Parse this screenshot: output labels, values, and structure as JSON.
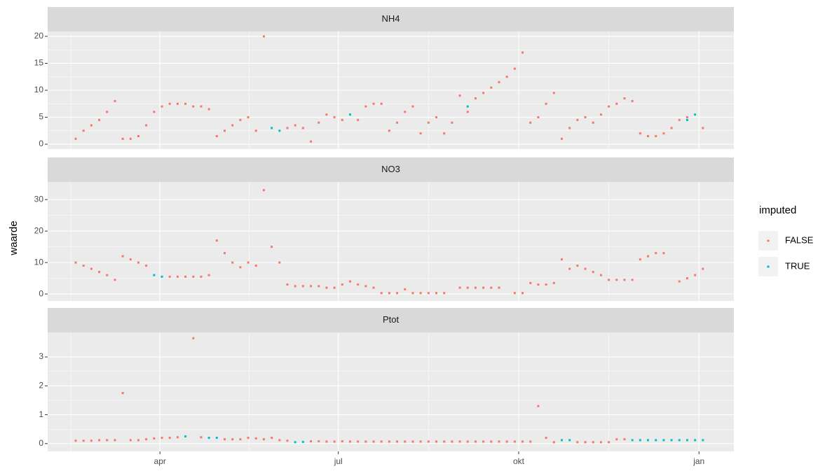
{
  "y_label": "waarde",
  "legend_title": "imputed",
  "chart_data": [
    {
      "type": "scatter",
      "title": "NH4",
      "x": [
        48,
        52,
        56,
        60,
        64,
        68,
        72,
        76,
        80,
        84,
        88,
        92,
        96,
        100,
        104,
        108,
        112,
        116,
        120,
        124,
        128,
        132,
        136,
        140,
        144,
        148,
        152,
        156,
        160,
        164,
        168,
        172,
        176,
        180,
        184,
        188,
        192,
        196,
        200,
        204,
        208,
        212,
        216,
        220,
        224,
        228,
        232,
        236,
        240,
        244,
        248,
        252,
        256,
        260,
        264,
        268,
        272,
        276,
        280,
        284,
        288,
        292,
        296,
        300,
        304,
        308,
        312,
        316,
        320,
        324,
        328,
        332,
        336,
        340,
        344,
        348,
        352,
        356,
        360,
        364,
        368
      ],
      "series": [
        {
          "name": "FALSE",
          "color": "#F8766D",
          "values": [
            1,
            2.5,
            3.5,
            4.5,
            6,
            8,
            1,
            1,
            1.5,
            3.5,
            6,
            7,
            7.5,
            7.5,
            7.5,
            7,
            7,
            6.5,
            1.5,
            2.5,
            3.5,
            4.5,
            5,
            2.5,
            20,
            null,
            null,
            3,
            3.5,
            3,
            0.5,
            4,
            5.5,
            5,
            4.5,
            null,
            4.5,
            7,
            7.5,
            7.5,
            2.5,
            4,
            6,
            7,
            2,
            4,
            5,
            2,
            4,
            9,
            6,
            8.5,
            9.5,
            10.5,
            11.5,
            12.5,
            14,
            17,
            4,
            5,
            7.5,
            9.5,
            1,
            3,
            4.5,
            5,
            4,
            5.5,
            7,
            7.5,
            8.5,
            8,
            2,
            1.5,
            1.5,
            2,
            3,
            4.5,
            5,
            null,
            3
          ]
        },
        {
          "name": "TRUE",
          "color": "#00BFC4",
          "values": [
            null,
            null,
            null,
            null,
            null,
            null,
            null,
            null,
            null,
            null,
            null,
            null,
            null,
            null,
            null,
            null,
            null,
            null,
            null,
            null,
            null,
            null,
            null,
            null,
            null,
            3,
            2.5,
            null,
            null,
            null,
            null,
            null,
            null,
            null,
            null,
            5.5,
            null,
            null,
            null,
            null,
            null,
            null,
            null,
            null,
            null,
            null,
            null,
            null,
            null,
            null,
            7,
            null,
            null,
            null,
            null,
            null,
            null,
            null,
            null,
            null,
            null,
            null,
            null,
            null,
            null,
            null,
            null,
            null,
            null,
            null,
            null,
            null,
            null,
            null,
            null,
            null,
            null,
            null,
            4.5,
            5.5,
            null
          ]
        }
      ],
      "xlim": [
        33.7,
        383.8
      ],
      "xticks": [
        {
          "value": 91,
          "label": "apr"
        },
        {
          "value": 182,
          "label": "jul"
        },
        {
          "value": 274,
          "label": "okt"
        },
        {
          "value": 366,
          "label": "jan"
        }
      ],
      "ylim": [
        -0.9,
        20.9
      ],
      "yticks": [
        0,
        5,
        10,
        15,
        20
      ],
      "grid": true
    },
    {
      "type": "scatter",
      "title": "NO3",
      "x": [
        48,
        52,
        56,
        60,
        64,
        68,
        72,
        76,
        80,
        84,
        88,
        92,
        96,
        100,
        104,
        108,
        112,
        116,
        120,
        124,
        128,
        132,
        136,
        140,
        144,
        148,
        152,
        156,
        160,
        164,
        168,
        172,
        176,
        180,
        184,
        188,
        192,
        196,
        200,
        204,
        208,
        212,
        216,
        220,
        224,
        228,
        232,
        236,
        240,
        244,
        248,
        252,
        256,
        260,
        264,
        268,
        272,
        276,
        280,
        284,
        288,
        292,
        296,
        300,
        304,
        308,
        312,
        316,
        320,
        324,
        328,
        332,
        336,
        340,
        344,
        348,
        352,
        356,
        360,
        364,
        368
      ],
      "series": [
        {
          "name": "FALSE",
          "color": "#F8766D",
          "values": [
            10,
            9,
            8,
            7,
            6,
            4.5,
            12,
            11,
            10,
            9,
            null,
            null,
            5.5,
            5.5,
            5.5,
            5.5,
            5.5,
            6,
            17,
            13,
            10,
            8.5,
            10,
            9,
            33,
            15,
            10,
            3,
            2.5,
            2.5,
            2.5,
            2.5,
            2,
            2,
            3,
            4,
            3,
            2.5,
            2,
            0.3,
            0.3,
            0.3,
            1.5,
            0.3,
            0.3,
            0.3,
            0.3,
            0.3,
            null,
            2,
            2,
            2,
            2,
            2,
            2,
            null,
            0.3,
            0.3,
            3.5,
            3,
            3,
            3.5,
            11,
            8,
            9,
            8,
            7,
            6,
            4.5,
            4.5,
            4.5,
            4.5,
            11,
            12,
            13,
            13,
            null,
            4,
            5,
            6,
            8
          ]
        },
        {
          "name": "TRUE",
          "color": "#00BFC4",
          "values": [
            null,
            null,
            null,
            null,
            null,
            null,
            null,
            null,
            null,
            null,
            6,
            5.5,
            null,
            null,
            null,
            null,
            null,
            null,
            null,
            null,
            null,
            null,
            null,
            null,
            null,
            null,
            null,
            null,
            null,
            null,
            null,
            null,
            null,
            null,
            null,
            null,
            null,
            null,
            null,
            null,
            null,
            null,
            null,
            null,
            null,
            null,
            null,
            null,
            null,
            null,
            null,
            null,
            null,
            null,
            null,
            null,
            null,
            null,
            null,
            null,
            null,
            null,
            null,
            null,
            null,
            null,
            null,
            null,
            null,
            null,
            null,
            null,
            null,
            null,
            null,
            null,
            null,
            null,
            null,
            null,
            null
          ]
        }
      ],
      "xlim": [
        33.7,
        383.8
      ],
      "xticks": [
        {
          "value": 91,
          "label": "apr"
        },
        {
          "value": 182,
          "label": "jul"
        },
        {
          "value": 274,
          "label": "okt"
        },
        {
          "value": 366,
          "label": "jan"
        }
      ],
      "ylim": [
        -2.2,
        35.6
      ],
      "yticks": [
        0,
        10,
        20,
        30
      ],
      "grid": true
    },
    {
      "type": "scatter",
      "title": "Ptot",
      "x": [
        48,
        52,
        56,
        60,
        64,
        68,
        72,
        76,
        80,
        84,
        88,
        92,
        96,
        100,
        104,
        108,
        112,
        116,
        120,
        124,
        128,
        132,
        136,
        140,
        144,
        148,
        152,
        156,
        160,
        164,
        168,
        172,
        176,
        180,
        184,
        188,
        192,
        196,
        200,
        204,
        208,
        212,
        216,
        220,
        224,
        228,
        232,
        236,
        240,
        244,
        248,
        252,
        256,
        260,
        264,
        268,
        272,
        276,
        280,
        284,
        288,
        292,
        296,
        300,
        304,
        308,
        312,
        316,
        320,
        324,
        328,
        332,
        336,
        340,
        344,
        348,
        352,
        356,
        360,
        364,
        368
      ],
      "series": [
        {
          "name": "FALSE",
          "color": "#F8766D",
          "values": [
            0.1,
            0.1,
            0.1,
            0.12,
            0.12,
            0.12,
            1.75,
            0.12,
            0.12,
            0.15,
            0.18,
            0.2,
            0.2,
            0.22,
            null,
            3.65,
            0.22,
            null,
            null,
            0.15,
            0.15,
            0.15,
            0.2,
            0.18,
            0.15,
            0.2,
            0.12,
            0.1,
            null,
            null,
            0.08,
            0.08,
            0.07,
            0.07,
            0.08,
            0.07,
            0.07,
            0.07,
            0.07,
            0.07,
            0.07,
            0.07,
            0.07,
            0.07,
            0.07,
            0.07,
            0.07,
            0.07,
            0.07,
            0.07,
            0.07,
            0.07,
            0.07,
            0.07,
            0.07,
            0.07,
            0.07,
            0.07,
            0.07,
            1.3,
            0.2,
            0.05,
            null,
            null,
            0.05,
            0.05,
            0.05,
            0.05,
            0.05,
            0.15,
            0.15,
            null,
            null,
            null,
            null,
            null,
            null,
            null,
            null,
            null,
            null
          ]
        },
        {
          "name": "TRUE",
          "color": "#00BFC4",
          "values": [
            null,
            null,
            null,
            null,
            null,
            null,
            null,
            null,
            null,
            null,
            null,
            null,
            null,
            null,
            0.25,
            null,
            null,
            0.2,
            0.2,
            null,
            null,
            null,
            null,
            null,
            null,
            null,
            null,
            null,
            0.05,
            0.06,
            null,
            null,
            null,
            null,
            null,
            null,
            null,
            null,
            null,
            null,
            null,
            null,
            null,
            null,
            null,
            null,
            null,
            null,
            null,
            null,
            null,
            null,
            null,
            null,
            null,
            null,
            null,
            null,
            null,
            null,
            null,
            null,
            0.12,
            0.12,
            null,
            null,
            null,
            null,
            null,
            null,
            null,
            0.12,
            0.12,
            0.12,
            0.12,
            0.12,
            0.12,
            0.12,
            0.12,
            0.12,
            0.12
          ]
        }
      ],
      "xlim": [
        33.7,
        383.8
      ],
      "xticks": [
        {
          "value": 91,
          "label": "apr"
        },
        {
          "value": 182,
          "label": "jul"
        },
        {
          "value": 274,
          "label": "okt"
        },
        {
          "value": 366,
          "label": "jan"
        }
      ],
      "ylim": [
        -0.27,
        3.85
      ],
      "yticks": [
        0,
        1,
        2,
        3
      ],
      "grid": true
    }
  ]
}
